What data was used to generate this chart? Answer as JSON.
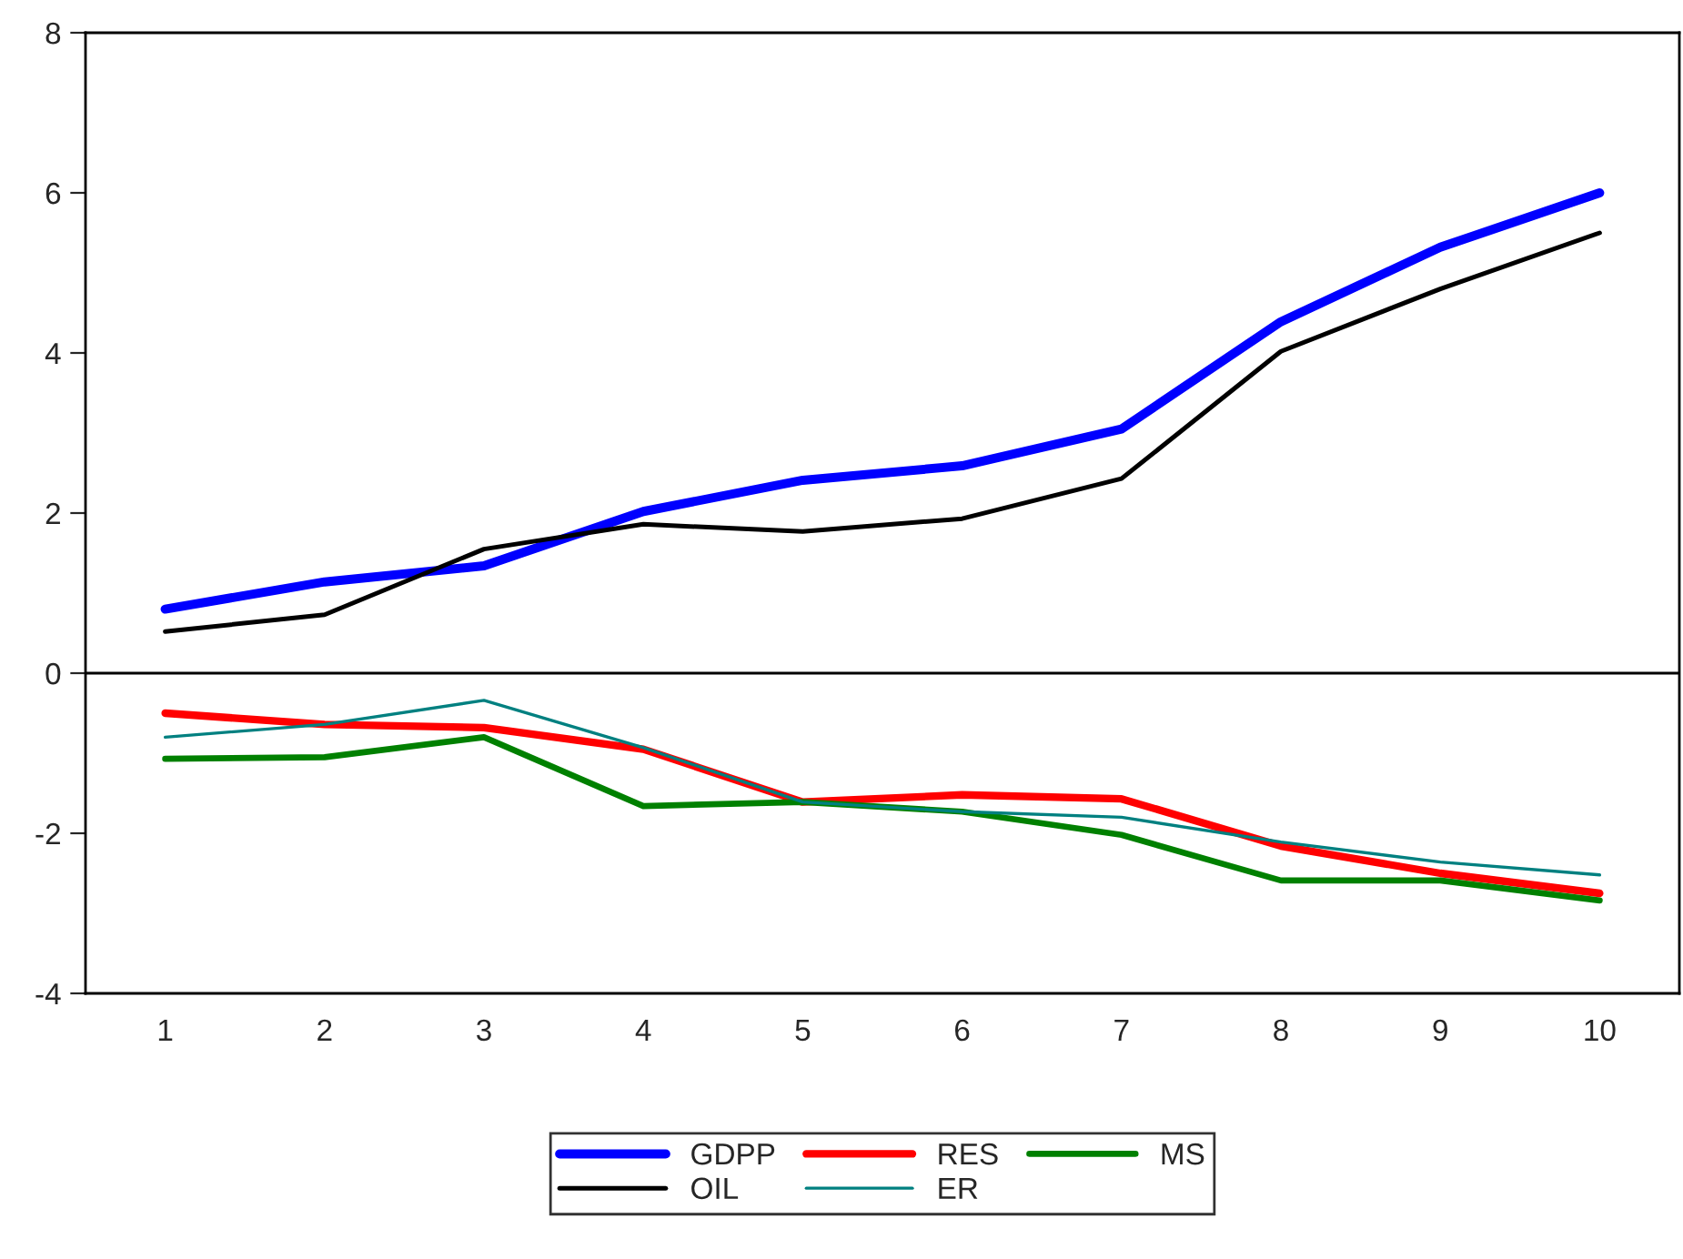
{
  "chart_data": {
    "type": "line",
    "categories": [
      "1",
      "2",
      "3",
      "4",
      "5",
      "6",
      "7",
      "8",
      "9",
      "10"
    ],
    "series": [
      {
        "name": "GDPP",
        "color": "#0000ff",
        "values": [
          0.8,
          1.14,
          1.34,
          2.02,
          2.41,
          2.59,
          3.05,
          4.39,
          5.32,
          6.0
        ]
      },
      {
        "name": "RES",
        "color": "#ff0000",
        "values": [
          -0.5,
          -0.64,
          -0.68,
          -0.95,
          -1.61,
          -1.52,
          -1.57,
          -2.16,
          -2.5,
          -2.75
        ]
      },
      {
        "name": "MS",
        "color": "#008000",
        "values": [
          -1.07,
          -1.05,
          -0.8,
          -1.66,
          -1.61,
          -1.73,
          -2.02,
          -2.59,
          -2.59,
          -2.84
        ]
      },
      {
        "name": "OIL",
        "color": "#000000",
        "values": [
          0.52,
          0.73,
          1.55,
          1.86,
          1.77,
          1.93,
          2.43,
          4.02,
          4.8,
          5.5
        ]
      },
      {
        "name": "ER",
        "color": "#008080",
        "values": [
          -0.8,
          -0.64,
          -0.34,
          -0.93,
          -1.61,
          -1.73,
          -1.8,
          -2.11,
          -2.36,
          -2.52
        ]
      }
    ],
    "ylim": [
      -4,
      8
    ],
    "yticks": [
      -4,
      -2,
      0,
      2,
      4,
      6,
      8
    ],
    "ref_lines": [
      {
        "axis": "y",
        "value": 0,
        "color": "#000000"
      }
    ],
    "grid": false,
    "legend": "bottom",
    "marker": "none",
    "line_style": "solid"
  }
}
